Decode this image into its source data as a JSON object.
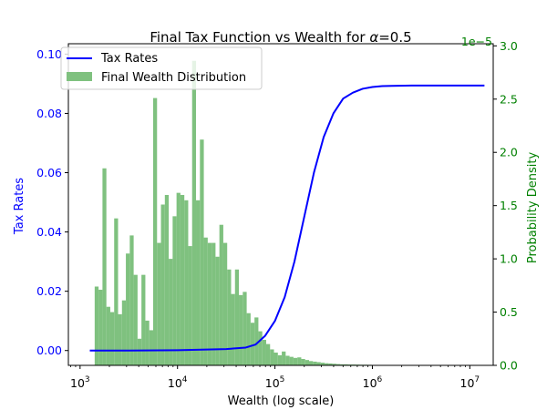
{
  "chart_data": {
    "type": "bar",
    "title": "Final Tax Function vs Wealth for",
    "title_alpha_symbol": "α",
    "title_alpha_value": "=0.5",
    "xlabel": "Wealth (log scale)",
    "ylabel_left": "Tax Rates",
    "ylabel_right": "Probability Density",
    "right_axis_offset_text": "1e−5",
    "x_scale": "log",
    "x_range_log10": [
      2.88,
      7.24
    ],
    "x_tick_labels": [
      {
        "base": "10",
        "exp": "3",
        "log10": 3
      },
      {
        "base": "10",
        "exp": "4",
        "log10": 4
      },
      {
        "base": "10",
        "exp": "5",
        "log10": 5
      },
      {
        "base": "10",
        "exp": "6",
        "log10": 6
      },
      {
        "base": "10",
        "exp": "7",
        "log10": 7
      }
    ],
    "left_ylim": [
      -0.005,
      0.1035
    ],
    "left_y_tick_labels": [
      "0.00",
      "0.02",
      "0.04",
      "0.06",
      "0.08",
      "0.10"
    ],
    "left_y_tick_values": [
      0.0,
      0.02,
      0.04,
      0.06,
      0.08,
      0.1
    ],
    "right_ylim": [
      0,
      3.02
    ],
    "right_y_tick_labels": [
      "0.0",
      "0.5",
      "1.0",
      "1.5",
      "2.0",
      "2.5",
      "3.0"
    ],
    "right_y_tick_values": [
      0.0,
      0.5,
      1.0,
      1.5,
      2.0,
      2.5,
      3.0
    ],
    "legend_position": "top-left",
    "grid": false,
    "colors": {
      "tax_line": "#0000ff",
      "histogram": "#7fc17f",
      "right_axis": "#008000",
      "left_axis": "#0000ff"
    },
    "series": [
      {
        "name": "Tax Rates",
        "kind": "line",
        "axis": "left",
        "x_log10": [
          3.1,
          3.5,
          4.0,
          4.5,
          4.7,
          4.8,
          4.9,
          5.0,
          5.1,
          5.2,
          5.3,
          5.4,
          5.5,
          5.6,
          5.7,
          5.8,
          5.9,
          6.0,
          6.1,
          6.2,
          6.4,
          6.6,
          7.0,
          7.15
        ],
        "y": [
          0.0,
          0.0,
          0.0001,
          0.0005,
          0.001,
          0.002,
          0.005,
          0.01,
          0.018,
          0.03,
          0.045,
          0.06,
          0.072,
          0.08,
          0.085,
          0.087,
          0.0883,
          0.0889,
          0.0892,
          0.0893,
          0.0894,
          0.0894,
          0.0894,
          0.0894
        ]
      },
      {
        "name": "Final Wealth Distribution",
        "kind": "histogram",
        "axis": "right",
        "bin_start_log10": 3.15,
        "bin_width_log10": 0.04,
        "density_1e-5": [
          0.74,
          0.71,
          1.85,
          0.55,
          0.5,
          1.38,
          0.48,
          0.61,
          1.05,
          1.22,
          0.85,
          0.25,
          0.85,
          0.42,
          0.33,
          2.51,
          1.15,
          1.51,
          1.6,
          1.0,
          1.4,
          1.62,
          1.6,
          1.55,
          1.12,
          2.86,
          1.55,
          2.12,
          1.2,
          1.15,
          1.15,
          1.02,
          1.32,
          1.15,
          0.9,
          0.67,
          0.9,
          0.66,
          0.69,
          0.49,
          0.4,
          0.45,
          0.32,
          0.24,
          0.2,
          0.15,
          0.12,
          0.095,
          0.13,
          0.09,
          0.08,
          0.07,
          0.075,
          0.06,
          0.05,
          0.04,
          0.035,
          0.03,
          0.025,
          0.02,
          0.018,
          0.015,
          0.012,
          0.01,
          0.01,
          0.008,
          0.008,
          0.007,
          0.006,
          0.006,
          0.005,
          0.004,
          0.004,
          0.003,
          0.003,
          0.002,
          0.002,
          0.002,
          0.002,
          0.002,
          0.001,
          0.001,
          0.001
        ]
      }
    ]
  }
}
